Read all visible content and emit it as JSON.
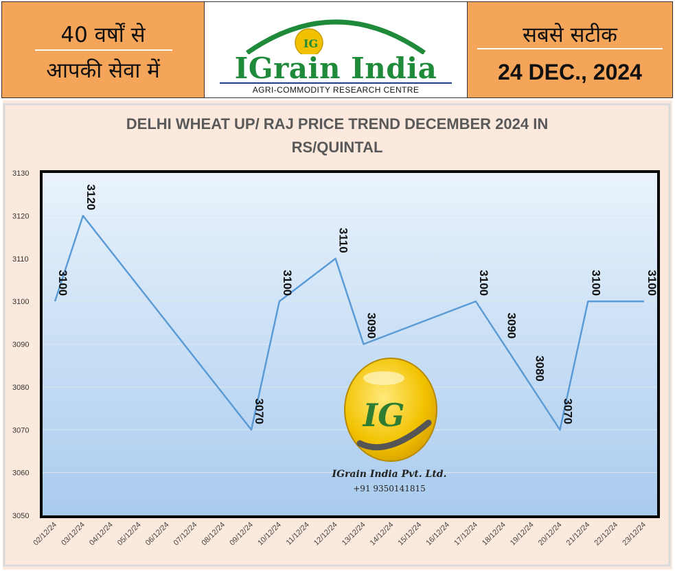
{
  "header": {
    "left_line1": "40 वर्षों से",
    "left_line2": "आपकी सेवा में",
    "brand_name": "IGrain India",
    "brand_subtitle": "AGRI-COMMODITY RESEARCH CENTRE",
    "right_line1": "सबसे सटीक",
    "right_date": "24 DEC., 2024",
    "colors": {
      "panel": "#F5A55A",
      "brand_green": "#1E8A3A",
      "brand_gold": "#F2C200"
    }
  },
  "watermark": {
    "icon": "igrain-logo-icon",
    "company": "IGrain India Pvt. Ltd.",
    "phone": "+91 9350141815"
  },
  "chart_data": {
    "type": "line",
    "title_line1": "DELHI WHEAT UP/ RAJ  PRICE TREND DECEMBER 2024 IN",
    "title_line2": "RS/QUINTAL",
    "xlabel": "",
    "ylabel": "",
    "ylim": [
      3050,
      3130
    ],
    "yticks": [
      3050,
      3060,
      3070,
      3080,
      3090,
      3100,
      3110,
      3120,
      3130
    ],
    "categories": [
      "02/12/24",
      "03/12/24",
      "04/12/24",
      "05/12/24",
      "06/12/24",
      "07/12/24",
      "08/12/24",
      "09/12/24",
      "10/12/24",
      "11/12/24",
      "12/12/24",
      "13/12/24",
      "14/12/24",
      "15/12/24",
      "16/12/24",
      "17/12/24",
      "18/12/24",
      "19/12/24",
      "20/12/24",
      "21/12/24",
      "22/12/24",
      "23/12/24"
    ],
    "points": [
      {
        "x": "02/12/24",
        "y": 3100
      },
      {
        "x": "03/12/24",
        "y": 3120
      },
      {
        "x": "09/12/24",
        "y": 3070
      },
      {
        "x": "10/12/24",
        "y": 3100
      },
      {
        "x": "12/12/24",
        "y": 3110
      },
      {
        "x": "13/12/24",
        "y": 3090
      },
      {
        "x": "17/12/24",
        "y": 3100
      },
      {
        "x": "18/12/24",
        "y": 3090
      },
      {
        "x": "19/12/24",
        "y": 3080
      },
      {
        "x": "20/12/24",
        "y": 3070
      },
      {
        "x": "21/12/24",
        "y": 3100
      },
      {
        "x": "23/12/24",
        "y": 3100
      }
    ],
    "labeled_points": [
      "02/12/24",
      "03/12/24",
      "09/12/24",
      "10/12/24",
      "12/12/24",
      "13/12/24",
      "17/12/24",
      "18/12/24",
      "19/12/24",
      "20/12/24",
      "21/12/24",
      "23/12/24"
    ],
    "line_color": "#5B9BD5",
    "grid": true,
    "legend": "none"
  }
}
